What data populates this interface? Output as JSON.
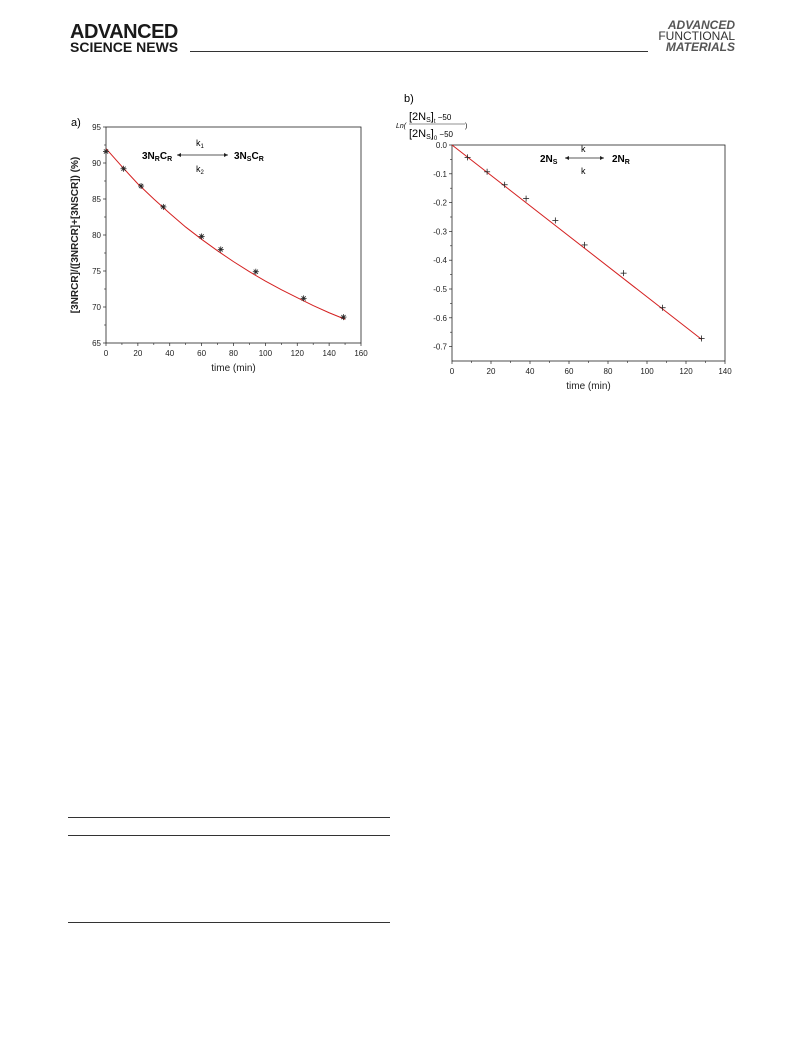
{
  "header": {
    "left_logo_top": "ADVANCED",
    "left_logo_bottom": "SCIENCE NEWS",
    "right_logo_line1": "ADVANCED",
    "right_logo_line2": "FUNCTIONAL",
    "right_logo_line3": "MATERIALS"
  },
  "figure_a": {
    "panel_label": "a)",
    "scheme": {
      "left": "3N",
      "left_sub1": "R",
      "left_mid": "C",
      "left_sub2": "R",
      "right": "3N",
      "right_sub1": "S",
      "right_mid": "C",
      "right_sub2": "R",
      "k_top": "k",
      "k_top_sub": "1",
      "k_bottom": "k",
      "k_bottom_sub": "2"
    }
  },
  "figure_b": {
    "panel_label": "b)",
    "scheme": {
      "left": "2N",
      "left_sub": "S",
      "right": "2N",
      "right_sub": "R",
      "k_top": "k",
      "k_bottom": "k"
    },
    "ylabel_prefix": "Ln(",
    "ylabel_num": "[2N",
    "ylabel_num_sub": "S",
    "ylabel_num_close": "]",
    "ylabel_num_tail": "t",
    "ylabel_num_minus": " −50",
    "ylabel_den": "[2N",
    "ylabel_den_sub": "S",
    "ylabel_den_close": "]",
    "ylabel_den_tail": "0",
    "ylabel_den_minus": " −50",
    "ylabel_suffix": ")"
  },
  "chart_data": [
    {
      "type": "scatter",
      "title": "",
      "xlabel": "time (min)",
      "ylabel": "[3NRCR]/([3NRCR]+[3NSCR]) (%)",
      "xlim": [
        0,
        160
      ],
      "ylim": [
        65,
        95
      ],
      "xticks": [
        "0",
        "20",
        "40",
        "60",
        "80",
        "100",
        "120",
        "140",
        "160"
      ],
      "yticks": [
        "65",
        "70",
        "75",
        "80",
        "85",
        "90",
        "95"
      ],
      "marker": "asterisk",
      "x": [
        0,
        11,
        22,
        36,
        60,
        72,
        94,
        124,
        149
      ],
      "y": [
        91.6,
        89.2,
        86.8,
        83.9,
        79.8,
        78.0,
        74.9,
        71.2,
        68.6
      ],
      "fit_x": [
        0,
        10,
        20,
        30,
        40,
        50,
        60,
        70,
        80,
        90,
        100,
        110,
        120,
        130,
        140,
        150
      ],
      "fit_y": [
        92.0,
        89.5,
        87.1,
        85.0,
        83.0,
        81.1,
        79.4,
        77.8,
        76.3,
        74.9,
        73.6,
        72.4,
        71.3,
        70.2,
        69.2,
        68.3
      ],
      "fit_color": "#d42020"
    },
    {
      "type": "scatter",
      "title": "",
      "xlabel": "time (min)",
      "ylabel": "Ln(([2NS]t − 50)/([2NS]0 − 50))",
      "xlim": [
        0,
        140
      ],
      "ylim": [
        -0.75,
        0.0
      ],
      "xticks": [
        "0",
        "20",
        "40",
        "60",
        "80",
        "100",
        "120",
        "140"
      ],
      "yticks": [
        "0.0",
        "-0.1",
        "-0.2",
        "-0.3",
        "-0.4",
        "-0.5",
        "-0.6",
        "-0.7"
      ],
      "marker": "plus",
      "x": [
        8,
        18,
        27,
        38,
        53,
        68,
        88,
        108,
        128
      ],
      "y": [
        -0.043,
        -0.093,
        -0.138,
        -0.186,
        -0.262,
        -0.347,
        -0.445,
        -0.565,
        -0.672
      ],
      "fit_x": [
        0,
        128
      ],
      "fit_y": [
        0.0,
        -0.675
      ],
      "fit_color": "#d42020"
    }
  ]
}
